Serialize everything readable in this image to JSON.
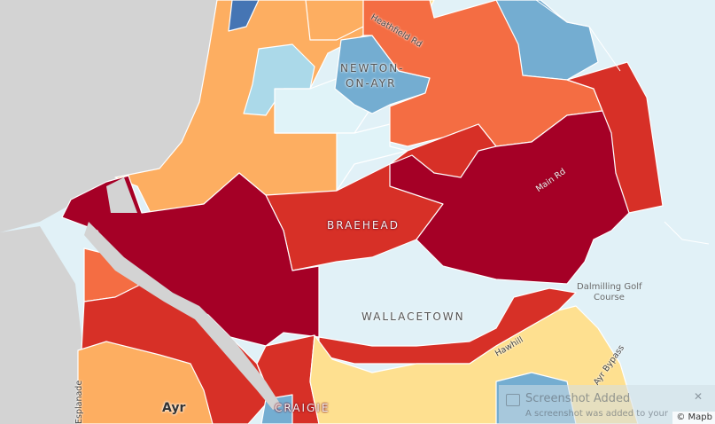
{
  "map": {
    "areas": {
      "newton_line1": "NEWTON-",
      "newton_line2": "ON-AYR",
      "braehead": "BRAEHEAD",
      "wallacetown": "WALLACETOWN",
      "craigie": "CRAIGIE",
      "ayr": "Ayr"
    },
    "roads": {
      "heathfield": "Heathfield Rd",
      "main": "Main Rd",
      "holmston": "Hawhill",
      "bypass": "Ayr Bypass",
      "esplanade": "Esplanade"
    },
    "poi": {
      "golf_line1": "Dalmilling Golf",
      "golf_line2": "Course"
    },
    "colors": {
      "sea": "#e1f1f7",
      "land": "#d3d3d3",
      "dark_red": "#a50026",
      "red": "#d73027",
      "orange_red": "#f46d43",
      "light_orange": "#fdae61",
      "pale_yellow": "#fee090",
      "light_blue": "#abd9e9",
      "pale_blue": "#e0f3f8",
      "mid_blue": "#74add1",
      "dark_blue": "#4575b4"
    }
  },
  "toast": {
    "title": "Screenshot Added",
    "subtitle": "A screenshot was added to your"
  },
  "attribution": "© Mapb"
}
